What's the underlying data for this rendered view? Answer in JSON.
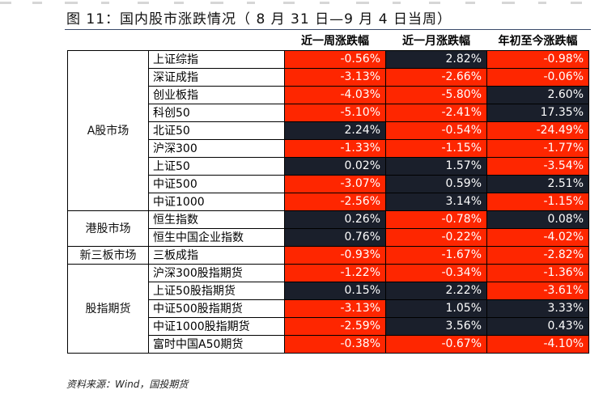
{
  "title": "图 11：国内股市涨跌情况（ 8 月 31 日—9 月 4 日当周）",
  "colors": {
    "negative": "#fe2600",
    "positive": "#1a1f2b",
    "text_on_cell": "#ffffff"
  },
  "columns": [
    "近一周涨跌幅",
    "近一月涨跌幅",
    "年初至今涨跌幅"
  ],
  "groups": [
    {
      "category": "A股市场",
      "rows": [
        {
          "name": "上证综指",
          "values": [
            "-0.56%",
            "2.82%",
            "-0.98%"
          ]
        },
        {
          "name": "深证成指",
          "values": [
            "-3.13%",
            "-2.66%",
            "-0.06%"
          ]
        },
        {
          "name": "创业板指",
          "values": [
            "-4.03%",
            "-5.80%",
            "2.60%"
          ]
        },
        {
          "name": "科创50",
          "values": [
            "-5.10%",
            "-2.41%",
            "17.35%"
          ]
        },
        {
          "name": "北证50",
          "values": [
            "2.24%",
            "-0.54%",
            "-24.49%"
          ]
        },
        {
          "name": "沪深300",
          "values": [
            "-1.33%",
            "-1.15%",
            "-1.77%"
          ]
        },
        {
          "name": "上证50",
          "values": [
            "0.02%",
            "1.57%",
            "-3.54%"
          ]
        },
        {
          "name": "中证500",
          "values": [
            "-3.07%",
            "0.59%",
            "2.51%"
          ]
        },
        {
          "name": "中证1000",
          "values": [
            "-2.56%",
            "3.14%",
            "-1.15%"
          ]
        }
      ]
    },
    {
      "category": "港股市场",
      "rows": [
        {
          "name": "恒生指数",
          "values": [
            "0.26%",
            "-0.78%",
            "0.08%"
          ]
        },
        {
          "name": "恒生中国企业指数",
          "values": [
            "0.76%",
            "-0.22%",
            "-4.02%"
          ]
        }
      ]
    },
    {
      "category": "新三板市场",
      "rows": [
        {
          "name": "三板成指",
          "values": [
            "-0.93%",
            "-1.67%",
            "-2.82%"
          ]
        }
      ]
    },
    {
      "category": "股指期货",
      "rows": [
        {
          "name": "沪深300股指期货",
          "values": [
            "-1.22%",
            "-0.34%",
            "-1.36%"
          ]
        },
        {
          "name": "上证50股指期货",
          "values": [
            "0.15%",
            "2.22%",
            "-3.61%"
          ]
        },
        {
          "name": "中证500股指期货",
          "values": [
            "-3.13%",
            "1.05%",
            "3.33%"
          ]
        },
        {
          "name": "中证1000股指期货",
          "values": [
            "-2.59%",
            "3.56%",
            "0.43%"
          ]
        },
        {
          "name": "富时中国A50期货",
          "values": [
            "-0.38%",
            "-0.67%",
            "-4.10%"
          ]
        }
      ]
    }
  ],
  "source": "资料来源：Wind，国投期货"
}
